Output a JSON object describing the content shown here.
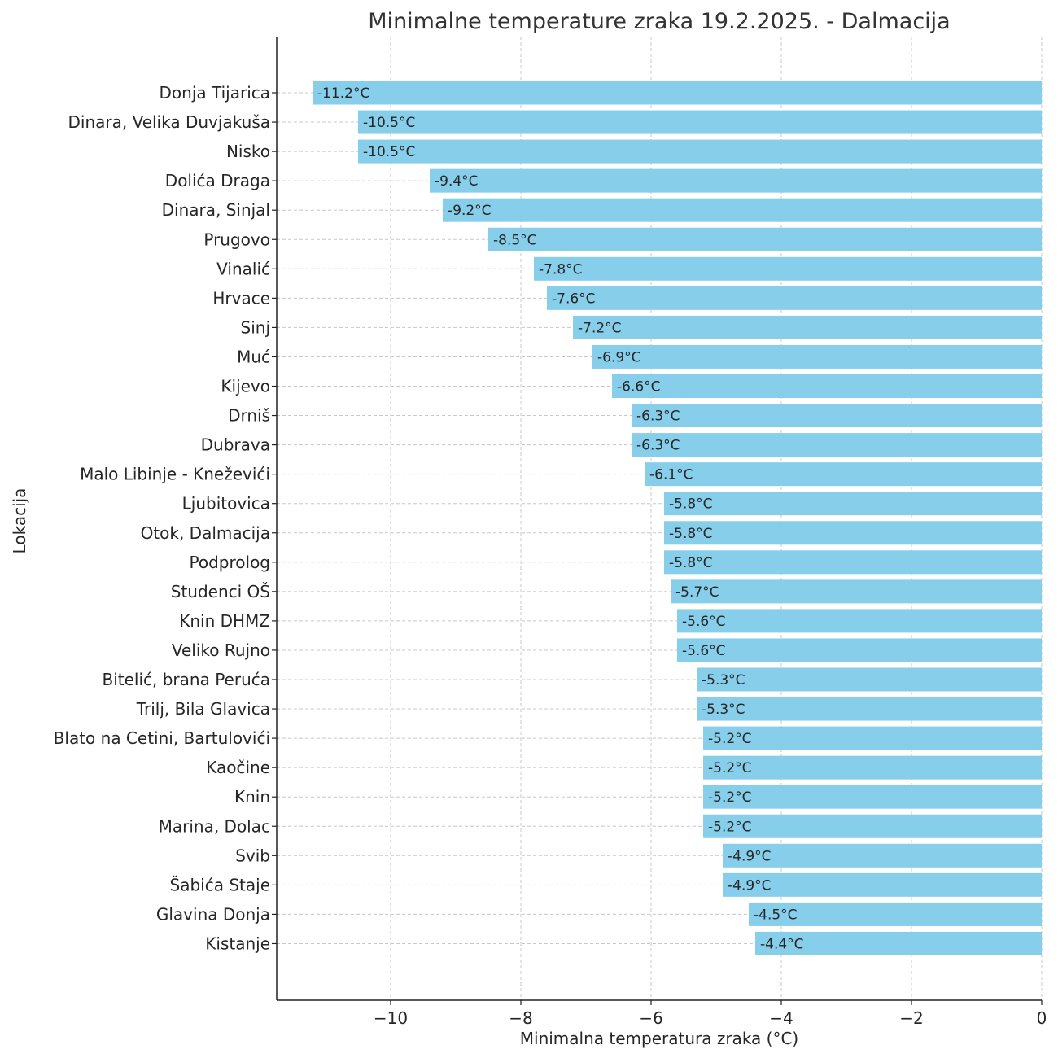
{
  "colors": {
    "bar": "#87ceeb",
    "grid": "#c8c8c8",
    "axis": "#222222",
    "text": "#262626"
  },
  "chart_data": {
    "type": "bar",
    "orientation": "horizontal",
    "title": "Minimalne temperature zraka 19.2.2025. - Dalmacija",
    "xlabel": "Minimalna temperatura zraka (°C)",
    "ylabel": "Lokacija",
    "xlim": [
      -11.75,
      0
    ],
    "xticks": [
      -10,
      -8,
      -6,
      -4,
      -2,
      0
    ],
    "xtick_labels": [
      "−10",
      "−8",
      "−6",
      "−4",
      "−2",
      "0"
    ],
    "grid": true,
    "value_label_suffix": "°C",
    "categories": [
      "Donja Tijarica",
      "Dinara, Velika Duvjakuša",
      "Nisko",
      "Dolića Draga",
      "Dinara, Sinjal",
      "Prugovo",
      "Vinalić",
      "Hrvace",
      "Sinj",
      "Muć",
      "Kijevo",
      "Drniš",
      "Dubrava",
      "Malo Libinje - Kneževići",
      "Ljubitovica",
      "Otok, Dalmacija",
      "Podprolog",
      "Studenci OŠ",
      "Knin DHMZ",
      "Veliko Rujno",
      "Bitelić, brana Peruća",
      "Trilj, Bila Glavica",
      "Blato na Cetini, Bartulovići",
      "Kaočine",
      "Knin",
      "Marina, Dolac",
      "Svib",
      "Šabića Staje",
      "Glavina Donja",
      "Kistanje"
    ],
    "values": [
      -11.2,
      -10.5,
      -10.5,
      -9.4,
      -9.2,
      -8.5,
      -7.8,
      -7.6,
      -7.2,
      -6.9,
      -6.6,
      -6.3,
      -6.3,
      -6.1,
      -5.8,
      -5.8,
      -5.8,
      -5.7,
      -5.6,
      -5.6,
      -5.3,
      -5.3,
      -5.2,
      -5.2,
      -5.2,
      -5.2,
      -4.9,
      -4.9,
      -4.5,
      -4.4
    ]
  }
}
